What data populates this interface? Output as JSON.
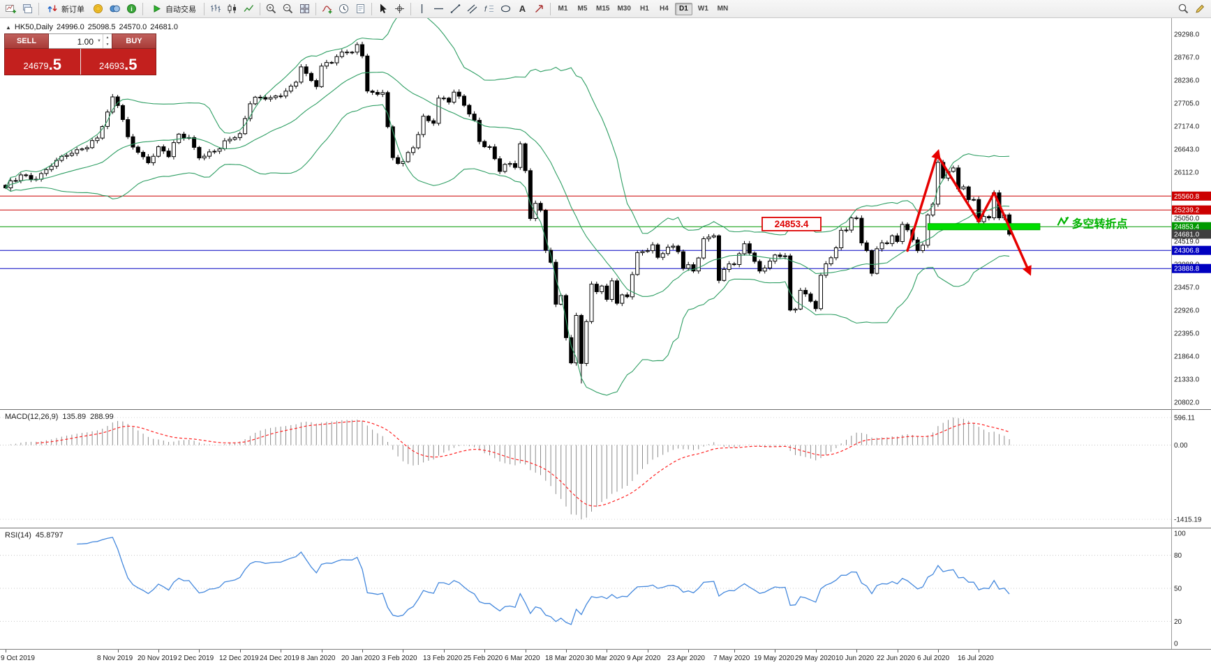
{
  "colors": {
    "resistance_red": "#cc0000",
    "support_blue": "#0000c0",
    "pivot_green": "#009900",
    "zone_green": "#00dd00",
    "arrow_red": "#e60000",
    "bollinger_green": "#2e9e63",
    "rsi_blue": "#4488dd",
    "macd_signal_red": "#ff2222",
    "macd_hist_gray": "#8c8c8c",
    "widget_red": "#c3201e",
    "current_tag_bg": "#3f3f3f"
  },
  "toolbar": {
    "items": [
      {
        "name": "new-chart-button",
        "icon": "new-chart-icon"
      },
      {
        "name": "chart-profiles-button",
        "icon": "chart-profiles-icon"
      },
      {
        "type": "sep"
      },
      {
        "name": "new-order-button",
        "icon": "order-arrows-icon",
        "label": "新订单"
      },
      {
        "name": "funds-button",
        "icon": "funds-icon"
      },
      {
        "name": "community-button",
        "icon": "community-icon"
      },
      {
        "name": "info-button",
        "icon": "info-icon"
      },
      {
        "type": "sep"
      },
      {
        "name": "autotrade-button",
        "icon": "autotrade-play-icon",
        "label": "自动交易"
      },
      {
        "type": "sep"
      },
      {
        "name": "bar-chart-button",
        "icon": "bar-chart-icon"
      },
      {
        "name": "candle-chart-button",
        "icon": "candle-chart-icon"
      },
      {
        "name": "line-chart-button",
        "icon": "line-chart-icon"
      },
      {
        "type": "sep"
      },
      {
        "name": "zoom-in-button",
        "icon": "zoom-in-icon"
      },
      {
        "name": "zoom-out-button",
        "icon": "zoom-out-icon"
      },
      {
        "name": "tile-windows-button",
        "icon": "tile-windows-icon"
      },
      {
        "type": "sep"
      },
      {
        "name": "indicators-button",
        "icon": "indicators-icon"
      },
      {
        "name": "periods-button",
        "icon": "periods-icon"
      },
      {
        "name": "templates-button",
        "icon": "templates-icon"
      },
      {
        "type": "sep"
      },
      {
        "name": "cursor-button",
        "icon": "cursor-icon"
      },
      {
        "name": "crosshair-button",
        "icon": "crosshair-icon"
      },
      {
        "type": "sep"
      },
      {
        "name": "vline-tool-button",
        "icon": "vline-icon"
      },
      {
        "name": "hline-tool-button",
        "icon": "hline-icon"
      },
      {
        "name": "trendline-tool-button",
        "icon": "trendline-icon"
      },
      {
        "name": "channel-tool-button",
        "icon": "channel-icon"
      },
      {
        "name": "fibonacci-tool-button",
        "icon": "fibonacci-icon"
      },
      {
        "name": "shapes-tool-button",
        "icon": "shapes-icon"
      },
      {
        "name": "text-tool-button",
        "icon": "text-icon"
      },
      {
        "name": "arrows-tool-button",
        "icon": "arrows-icon"
      },
      {
        "type": "sep"
      },
      {
        "type": "timeframes"
      },
      {
        "type": "spacer"
      },
      {
        "name": "search-button",
        "icon": "search-icon"
      },
      {
        "name": "edit-button",
        "icon": "edit-icon"
      }
    ],
    "timeframes": {
      "items": [
        "M1",
        "M5",
        "M15",
        "M30",
        "H1",
        "H4",
        "D1",
        "W1",
        "MN"
      ],
      "active": "D1"
    }
  },
  "symbol_header": {
    "symbol": "HK50,Daily",
    "open": "24996.0",
    "high": "25098.5",
    "low": "24570.0",
    "close": "24681.0"
  },
  "trade_widget": {
    "sell_label": "SELL",
    "buy_label": "BUY",
    "lot": "1.00",
    "sell_price": "24679.5",
    "buy_price": "24693.5"
  },
  "chart_data": {
    "type": "candlestick",
    "symbol": "HK50",
    "timeframe": "Daily",
    "candle_count": 198,
    "price_axis": {
      "min": 20802,
      "max": 29298,
      "step": 531,
      "labels": [
        "29298.0",
        "28767.0",
        "28236.0",
        "27705.0",
        "27174.0",
        "26643.0",
        "26112.0",
        "25581.0",
        "25050.0",
        "24519.0",
        "23988.0",
        "23457.0",
        "22926.0",
        "22395.0",
        "21864.0",
        "21333.0",
        "20802.0"
      ]
    },
    "close_anchors": [
      [
        0,
        25750
      ],
      [
        3,
        26050
      ],
      [
        6,
        25950
      ],
      [
        9,
        26250
      ],
      [
        12,
        26500
      ],
      [
        15,
        26650
      ],
      [
        18,
        26900
      ],
      [
        20,
        27500
      ],
      [
        21,
        27850
      ],
      [
        22,
        27650
      ],
      [
        24,
        26930
      ],
      [
        26,
        26570
      ],
      [
        28,
        26330
      ],
      [
        30,
        26700
      ],
      [
        32,
        26470
      ],
      [
        34,
        26990
      ],
      [
        36,
        26910
      ],
      [
        38,
        26440
      ],
      [
        40,
        26580
      ],
      [
        42,
        26650
      ],
      [
        44,
        26870
      ],
      [
        46,
        27000
      ],
      [
        48,
        27690
      ],
      [
        49,
        27843
      ],
      [
        51,
        27800
      ],
      [
        53,
        27870
      ],
      [
        54,
        27870
      ],
      [
        56,
        28100
      ],
      [
        57,
        28190
      ],
      [
        58,
        28543
      ],
      [
        60,
        28226
      ],
      [
        61,
        28087
      ],
      [
        62,
        28561
      ],
      [
        64,
        28638
      ],
      [
        66,
        28885
      ],
      [
        68,
        28883
      ],
      [
        69,
        29056
      ],
      [
        70,
        28795
      ],
      [
        71,
        27985
      ],
      [
        73,
        27909
      ],
      [
        74,
        27949
      ],
      [
        75,
        27160
      ],
      [
        76,
        26449
      ],
      [
        77,
        26312
      ],
      [
        78,
        26356
      ],
      [
        80,
        26675
      ],
      [
        82,
        27404
      ],
      [
        84,
        27241
      ],
      [
        85,
        27823
      ],
      [
        87,
        27730
      ],
      [
        88,
        27960
      ],
      [
        90,
        27655
      ],
      [
        92,
        27309
      ],
      [
        93,
        26820
      ],
      [
        95,
        26696
      ],
      [
        97,
        26130
      ],
      [
        98,
        26292
      ],
      [
        100,
        26222
      ],
      [
        101,
        26767
      ],
      [
        102,
        26147
      ],
      [
        103,
        25041
      ],
      [
        104,
        25392
      ],
      [
        105,
        25231
      ],
      [
        106,
        24309
      ],
      [
        107,
        24033
      ],
      [
        108,
        23064
      ],
      [
        109,
        23264
      ],
      [
        110,
        22292
      ],
      [
        111,
        21709
      ],
      [
        112,
        22805
      ],
      [
        113,
        21696
      ],
      [
        114,
        22663
      ],
      [
        115,
        23527
      ],
      [
        116,
        23352
      ],
      [
        117,
        23484
      ],
      [
        118,
        23175
      ],
      [
        119,
        23603
      ],
      [
        120,
        23085
      ],
      [
        121,
        23280
      ],
      [
        122,
        23236
      ],
      [
        123,
        23749
      ],
      [
        124,
        24253
      ],
      [
        126,
        24300
      ],
      [
        127,
        24435
      ],
      [
        128,
        24145
      ],
      [
        130,
        24380
      ],
      [
        132,
        24276
      ],
      [
        133,
        23893
      ],
      [
        134,
        23977
      ],
      [
        135,
        23831
      ],
      [
        137,
        24575
      ],
      [
        139,
        24644
      ],
      [
        140,
        23613
      ],
      [
        142,
        23995
      ],
      [
        143,
        23981
      ],
      [
        144,
        24230
      ],
      [
        145,
        24460
      ],
      [
        146,
        24245
      ],
      [
        148,
        23830
      ],
      [
        149,
        23900
      ],
      [
        151,
        24200
      ],
      [
        153,
        24180
      ],
      [
        154,
        22930
      ],
      [
        155,
        22952
      ],
      [
        156,
        23384
      ],
      [
        157,
        23301
      ],
      [
        158,
        23132
      ],
      [
        159,
        22961
      ],
      [
        160,
        23732
      ],
      [
        161,
        23996
      ],
      [
        163,
        24366
      ],
      [
        164,
        24770
      ],
      [
        165,
        24776
      ],
      [
        166,
        25057
      ],
      [
        167,
        25049
      ],
      [
        168,
        24480
      ],
      [
        169,
        24301
      ],
      [
        170,
        23776
      ],
      [
        171,
        24344
      ],
      [
        172,
        24481
      ],
      [
        173,
        24464
      ],
      [
        174,
        24643
      ],
      [
        175,
        24511
      ],
      [
        176,
        24907
      ],
      [
        177,
        24781
      ],
      [
        178,
        24550
      ],
      [
        179,
        24301
      ],
      [
        180,
        24427
      ],
      [
        181,
        25124
      ],
      [
        182,
        25373
      ],
      [
        183,
        26339
      ],
      [
        184,
        25975
      ],
      [
        185,
        26129
      ],
      [
        186,
        26210
      ],
      [
        187,
        25727
      ],
      [
        188,
        25772
      ],
      [
        189,
        25477
      ],
      [
        190,
        25481
      ],
      [
        191,
        24970
      ],
      [
        192,
        25089
      ],
      [
        193,
        25057
      ],
      [
        194,
        25635
      ],
      [
        195,
        25057
      ],
      [
        196,
        25128
      ],
      [
        197,
        24681
      ]
    ],
    "bollinger": {
      "period": 20,
      "deviation": 2
    },
    "hlines": [
      {
        "price": 25560.8,
        "label": "25560.8",
        "color": "#cc0000"
      },
      {
        "price": 25239.2,
        "label": "25239.2",
        "color": "#cc0000"
      },
      {
        "price": 24853.4,
        "label": "24853.4",
        "color": "#009900"
      },
      {
        "price": 24306.8,
        "label": "24306.8",
        "color": "#0000c0"
      },
      {
        "price": 23888.8,
        "label": "23888.8",
        "color": "#0000c0"
      }
    ],
    "current_price": {
      "price": 24681.0,
      "label": "24681.0"
    },
    "annotations": {
      "support_zone": {
        "from_index": 181,
        "to_index": 203,
        "price": 24853.4
      },
      "price_label": {
        "text": "24853.4",
        "x_index": 148.5,
        "price": 24915
      },
      "turning_point_label": {
        "text": "多空转折点",
        "x_index": 206.5,
        "price": 24915
      },
      "trend_arrows": [
        {
          "points": [
            [
              177,
              24300
            ],
            [
              183,
              26580
            ]
          ]
        },
        {
          "points": [
            [
              183,
              26480
            ],
            [
              191,
              24975
            ],
            [
              194,
              25635
            ],
            [
              201,
              23780
            ]
          ]
        }
      ]
    },
    "date_labels": [
      {
        "i": 0,
        "t": "9 Oct 2019"
      },
      {
        "i": 22,
        "t": "8 Nov 2019"
      },
      {
        "i": 30,
        "t": "20 Nov 2019"
      },
      {
        "i": 38,
        "t": "2 Dec 2019"
      },
      {
        "i": 46,
        "t": "12 Dec 2019"
      },
      {
        "i": 54,
        "t": "24 Dec 2019"
      },
      {
        "i": 62,
        "t": "8 Jan 2020"
      },
      {
        "i": 70,
        "t": "20 Jan 2020"
      },
      {
        "i": 78,
        "t": "3 Feb 2020"
      },
      {
        "i": 86,
        "t": "13 Feb 2020"
      },
      {
        "i": 94,
        "t": "25 Feb 2020"
      },
      {
        "i": 102,
        "t": "6 Mar 2020"
      },
      {
        "i": 110,
        "t": "18 Mar 2020"
      },
      {
        "i": 118,
        "t": "30 Mar 2020"
      },
      {
        "i": 126,
        "t": "9 Apr 2020"
      },
      {
        "i": 134,
        "t": "23 Apr 2020"
      },
      {
        "i": 143,
        "t": "7 May 2020"
      },
      {
        "i": 151,
        "t": "19 May 2020"
      },
      {
        "i": 159,
        "t": "29 May 2020"
      },
      {
        "i": 167,
        "t": "10 Jun 2020"
      },
      {
        "i": 175,
        "t": "22 Jun 2020"
      },
      {
        "i": 183,
        "t": "6 Jul 2020"
      },
      {
        "i": 191,
        "t": "16 Jul 2020"
      }
    ],
    "macd": {
      "label": "MACD(12,26,9)",
      "value_main": "135.89",
      "value_signal": "288.99",
      "scale_max": "596.11",
      "scale_zero": "0.00",
      "scale_min": "-1415.19"
    },
    "rsi": {
      "label": "RSI(14)",
      "value": "45.8797",
      "levels": [
        80,
        50,
        20
      ],
      "scale_labels": [
        "100",
        "80",
        "50",
        "20",
        "0"
      ]
    }
  }
}
